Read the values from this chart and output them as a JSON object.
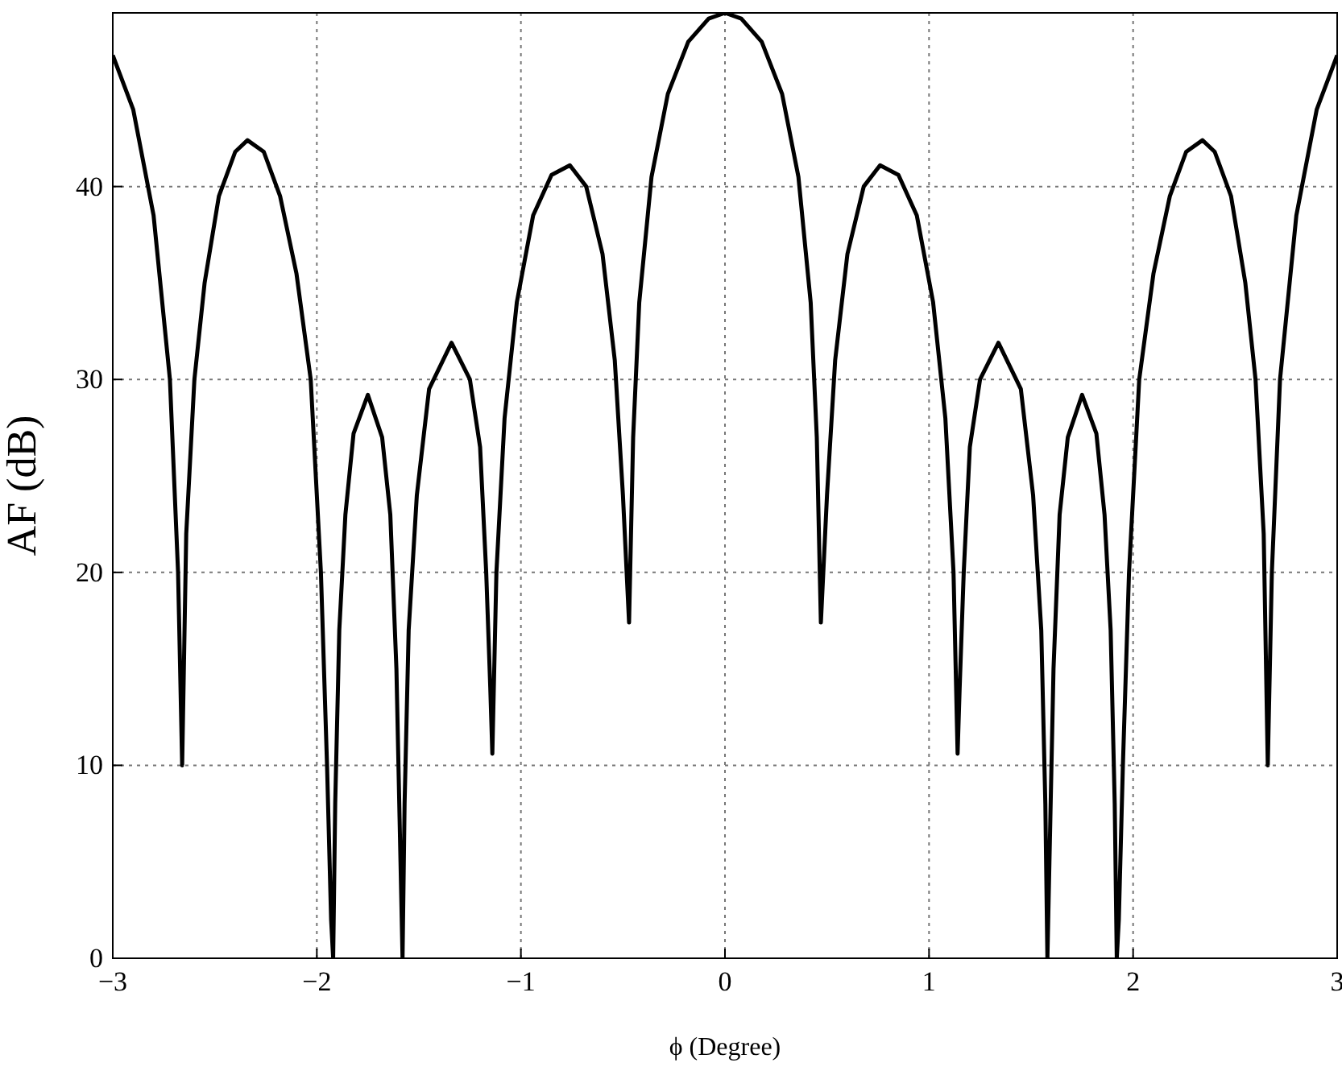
{
  "chart_data": {
    "type": "line",
    "xlabel": "ϕ (Degree)",
    "ylabel": "AF (dB)",
    "xlim": [
      -3,
      3
    ],
    "ylim": [
      0,
      49
    ],
    "xticks": [
      {
        "value": -3,
        "label": "−3"
      },
      {
        "value": -2,
        "label": "−2"
      },
      {
        "value": -1,
        "label": "−1"
      },
      0,
      1,
      2,
      3
    ],
    "yticks": [
      0,
      10,
      20,
      30,
      40
    ],
    "grid": true,
    "marker": "none",
    "series": [
      {
        "color": "#000000",
        "x": [
          -3,
          -2.9,
          -2.8,
          -2.72,
          -2.68,
          -2.66,
          -2.64,
          -2.6,
          -2.55,
          -2.48,
          -2.4,
          -2.34,
          -2.26,
          -2.18,
          -2.1,
          -2.03,
          -1.98,
          -1.95,
          -1.93,
          -1.92,
          -1.91,
          -1.89,
          -1.86,
          -1.82,
          -1.75,
          -1.68,
          -1.64,
          -1.61,
          -1.59,
          -1.58,
          -1.57,
          -1.55,
          -1.51,
          -1.45,
          -1.34,
          -1.25,
          -1.2,
          -1.17,
          -1.15,
          -1.14,
          -1.12,
          -1.08,
          -1.02,
          -0.94,
          -0.85,
          -0.76,
          -0.68,
          -0.6,
          -0.54,
          -0.5,
          -0.47,
          -0.45,
          -0.42,
          -0.36,
          -0.28,
          -0.18,
          -0.08,
          0,
          0.08,
          0.18,
          0.28,
          0.36,
          0.42,
          0.45,
          0.47,
          0.5,
          0.54,
          0.6,
          0.68,
          0.76,
          0.85,
          0.94,
          1.02,
          1.08,
          1.12,
          1.14,
          1.15,
          1.17,
          1.2,
          1.25,
          1.34,
          1.45,
          1.51,
          1.55,
          1.57,
          1.58,
          1.59,
          1.61,
          1.64,
          1.68,
          1.75,
          1.82,
          1.86,
          1.89,
          1.91,
          1.92,
          1.93,
          1.95,
          1.98,
          2.03,
          2.1,
          2.18,
          2.26,
          2.34,
          2.4,
          2.48,
          2.55,
          2.6,
          2.64,
          2.66,
          2.68,
          2.72,
          2.8,
          2.9,
          3
        ],
        "values": [
          46.8,
          44,
          38.5,
          30,
          20,
          10,
          22,
          30,
          35,
          39.5,
          41.8,
          42.4,
          41.8,
          39.5,
          35.5,
          30,
          20,
          10,
          2,
          0,
          8,
          17,
          23,
          27.2,
          29.2,
          27,
          23,
          15,
          5,
          0,
          8,
          17,
          24,
          29.5,
          31.9,
          30,
          26.5,
          20,
          14,
          10.6,
          20,
          28,
          34,
          38.5,
          40.6,
          41.1,
          40,
          36.5,
          31,
          24,
          17.4,
          27,
          34,
          40.5,
          44.8,
          47.5,
          48.7,
          49,
          48.7,
          47.5,
          44.8,
          40.5,
          34,
          27,
          17.4,
          24,
          31,
          36.5,
          40,
          41.1,
          40.6,
          38.5,
          34,
          28,
          20,
          10.6,
          14,
          20,
          26.5,
          30,
          31.9,
          29.5,
          24,
          17,
          8,
          0,
          5,
          15,
          23,
          27,
          29.2,
          27.2,
          23,
          17,
          8,
          0,
          2,
          10,
          20,
          30,
          35.5,
          39.5,
          41.8,
          42.4,
          41.8,
          39.5,
          35,
          30,
          22,
          10,
          20,
          30,
          38.5,
          44,
          46.8
        ]
      }
    ]
  }
}
